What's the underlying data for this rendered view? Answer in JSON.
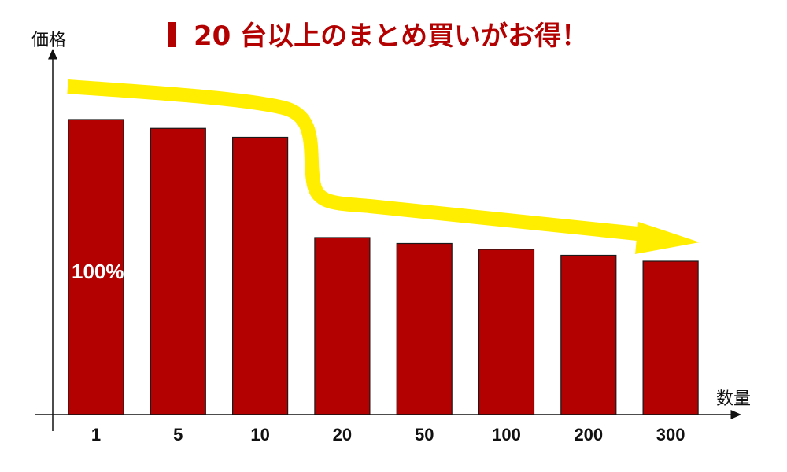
{
  "title": "20 台以上のまとめ買いがお得！",
  "colors": {
    "bar": "#b30000",
    "bar_stroke": "#1a1a1a",
    "arrow": "#ffee00",
    "title": "#b30000",
    "axis": "#111111"
  },
  "chart_data": {
    "type": "bar",
    "xlabel": "数量",
    "ylabel": "価格",
    "categories": [
      "1",
      "5",
      "10",
      "20",
      "50",
      "100",
      "200",
      "300"
    ],
    "values": [
      100,
      97,
      94,
      60,
      58,
      56,
      54,
      52
    ],
    "ylim": [
      0,
      100
    ],
    "data_labels": [
      {
        "category": "1",
        "text": "100%"
      }
    ],
    "annotation": "yellow trend arrow descending from left to right, dropping sharply between 10 and 20",
    "grid": false,
    "legend": "none"
  }
}
